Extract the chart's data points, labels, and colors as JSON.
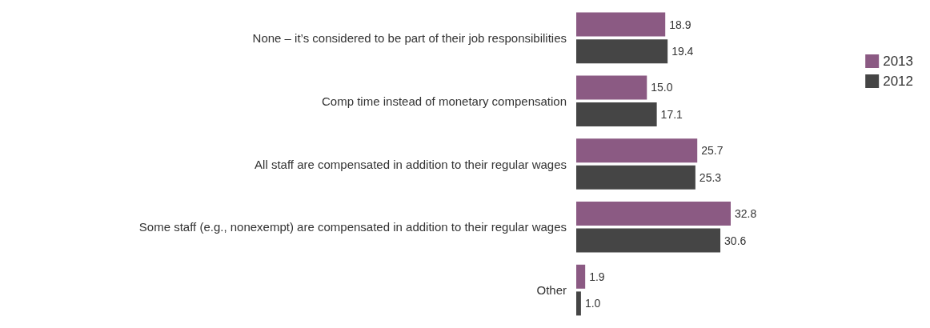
{
  "chart_data": {
    "type": "bar",
    "orientation": "horizontal",
    "categories": [
      "None – it’s considered to be part of their job responsibilities",
      "Comp time instead of monetary compensation",
      "All staff are compensated in addition to their regular wages",
      "Some staff (e.g., nonexempt) are compensated in addition to their regular wages",
      "Other"
    ],
    "series": [
      {
        "name": "2013",
        "color": "#8b5a83",
        "values": [
          18.9,
          15.0,
          25.7,
          32.8,
          1.9
        ],
        "value_labels": [
          "18.9",
          "15.0",
          "25.7",
          "32.8",
          "1.9"
        ]
      },
      {
        "name": "2012",
        "color": "#454545",
        "values": [
          19.4,
          17.1,
          25.3,
          30.6,
          1.0
        ],
        "value_labels": [
          "19.4",
          "17.1",
          "25.3",
          "30.6",
          "1.0"
        ]
      }
    ],
    "legend": "top right"
  }
}
